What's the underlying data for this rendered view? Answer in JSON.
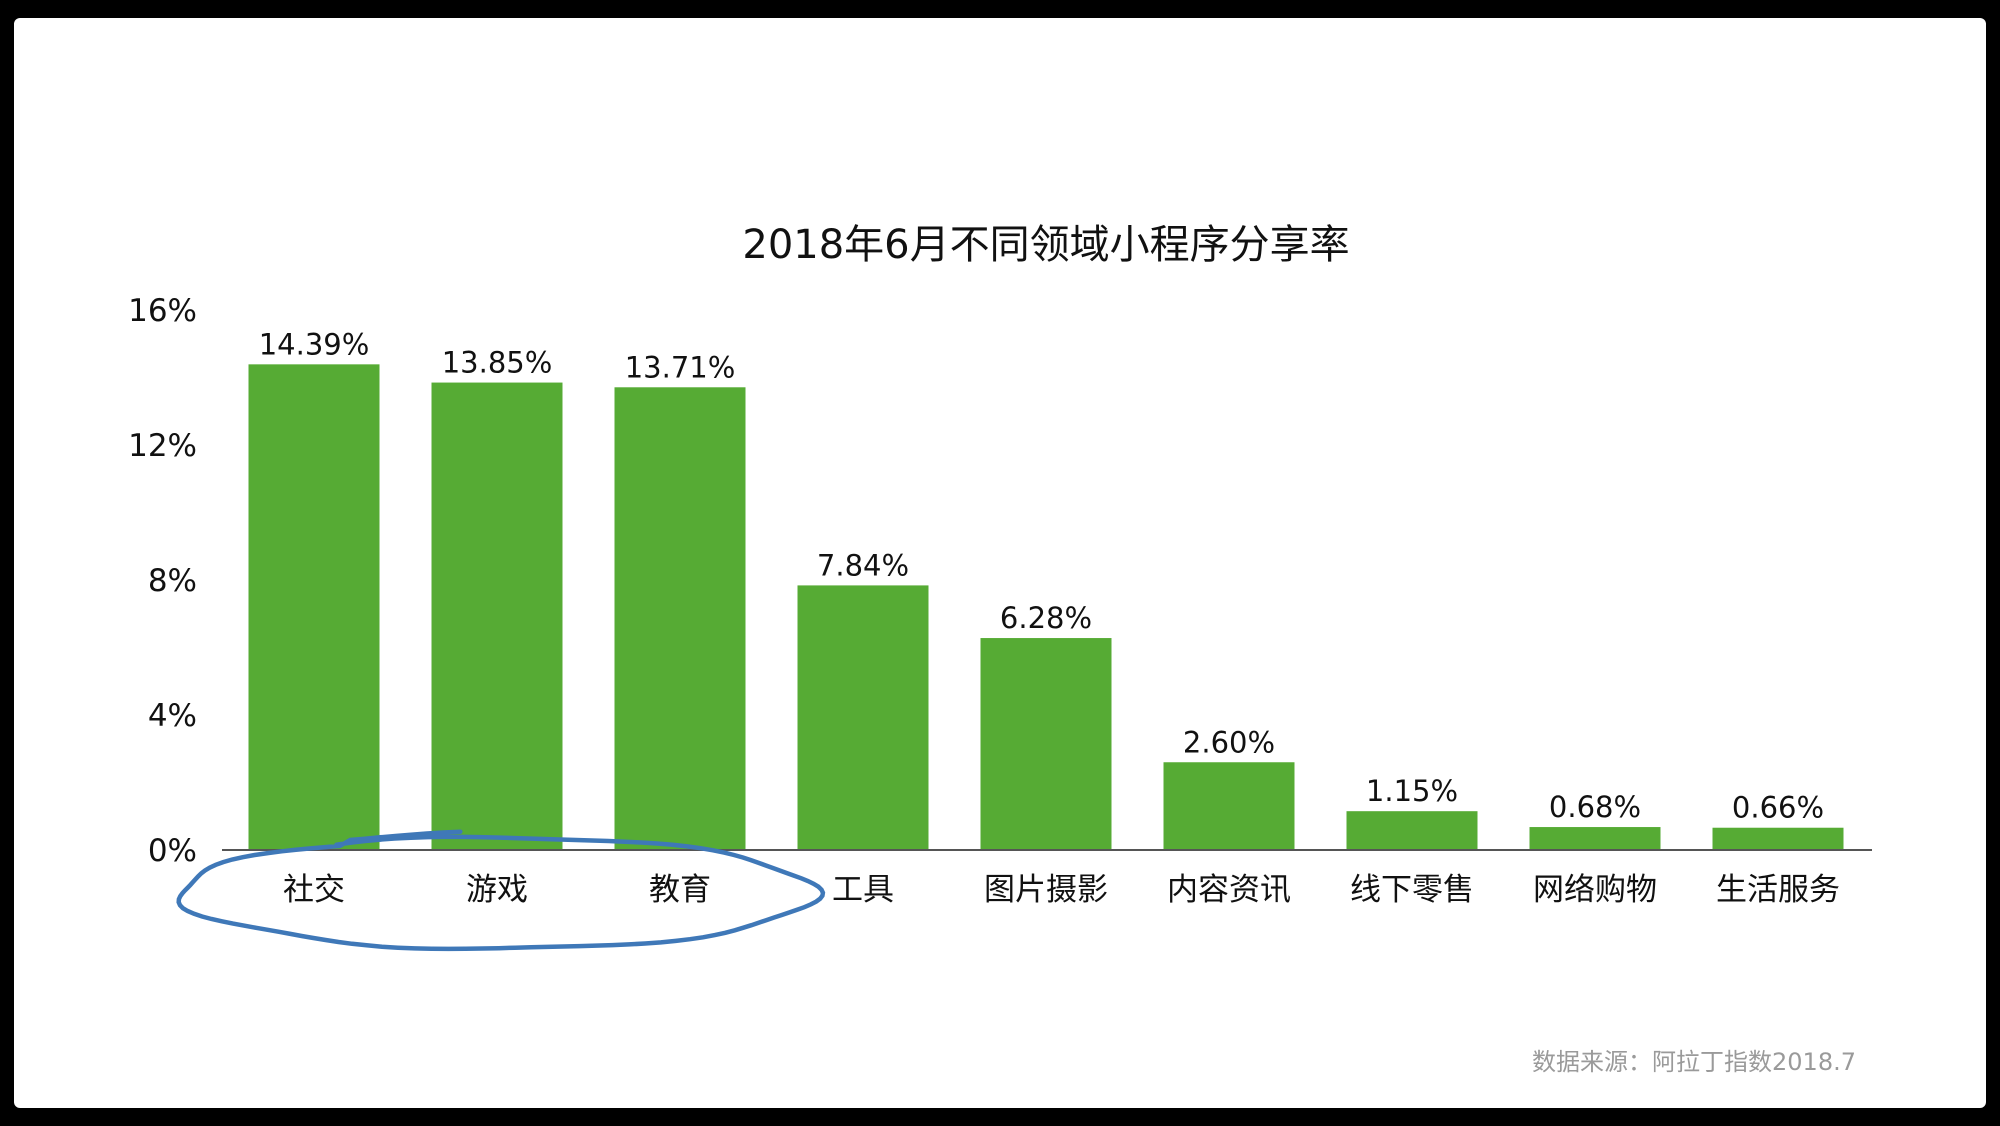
{
  "chart_data": {
    "type": "bar",
    "title": "2018年6月不同领域小程序分享率",
    "categories": [
      "社交",
      "游戏",
      "教育",
      "工具",
      "图片摄影",
      "内容资讯",
      "线下零售",
      "网络购物",
      "生活服务"
    ],
    "values": [
      14.39,
      13.85,
      13.71,
      7.84,
      6.28,
      2.6,
      1.15,
      0.68,
      0.66
    ],
    "value_labels": [
      "14.39%",
      "13.85%",
      "13.71%",
      "7.84%",
      "6.28%",
      "2.60%",
      "1.15%",
      "0.68%",
      "0.66%"
    ],
    "ylim": [
      0,
      16
    ],
    "yticks": [
      0,
      4,
      8,
      12,
      16
    ],
    "ytick_labels": [
      "0%",
      "4%",
      "8%",
      "12%",
      "16%"
    ],
    "xlabel": "",
    "ylabel": "",
    "grid": false,
    "bar_color": "#56ab34",
    "highlighted_categories": [
      "社交",
      "游戏",
      "教育"
    ],
    "highlight_color": "#3f78b8",
    "source_note": "数据来源：阿拉丁指数2018.7"
  }
}
